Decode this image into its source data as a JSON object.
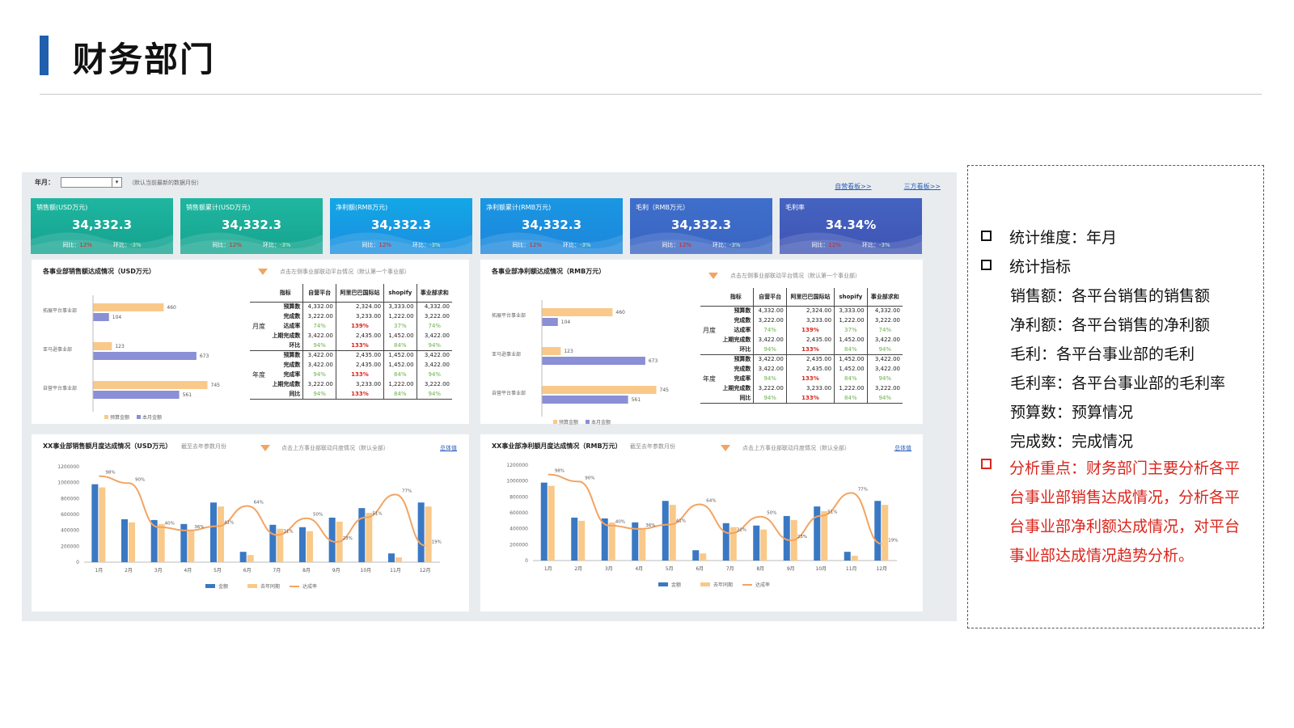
{
  "slide": {
    "title": "财务部门"
  },
  "dashboard": {
    "filter_label": "年月：",
    "filter_note": "（默认当前最新的数据月份）",
    "links": [
      "自营看板>>",
      "三方看板>>"
    ],
    "kpis": [
      {
        "name": "销售额(USD万元)",
        "value": "34,332.3",
        "yoy_label": "同比：",
        "yoy": "12%",
        "mom_label": "环比：",
        "mom": "-3%",
        "color1": "#1fb6a0",
        "color2": "#14a28f"
      },
      {
        "name": "销售额累计(USD万元)",
        "value": "34,332.3",
        "yoy_label": "同比：",
        "yoy": "12%",
        "mom_label": "环比：",
        "mom": "-3%",
        "color1": "#1fb6a0",
        "color2": "#16a48f"
      },
      {
        "name": "净利额(RMB万元)",
        "value": "34,332.3",
        "yoy_label": "同比：",
        "yoy": "12%",
        "mom_label": "环比：",
        "mom": "-3%",
        "color1": "#13a7e6",
        "color2": "#1a8ee0"
      },
      {
        "name": "净利额累计(RMB万元)",
        "value": "34,332.3",
        "yoy_label": "同比：",
        "yoy": "12%",
        "mom_label": "环比：",
        "mom": "-3%",
        "color1": "#1a97e2",
        "color2": "#1c86dc"
      },
      {
        "name": "毛利（RMB万元）",
        "value": "34,332.3",
        "yoy_label": "同比：",
        "yoy": "12%",
        "mom_label": "环比：",
        "mom": "-3%",
        "color1": "#3e6fcb",
        "color2": "#3a64c2"
      },
      {
        "name": "毛利率",
        "value": "34.34%",
        "yoy_label": "同比：",
        "yoy": "12%",
        "mom_label": "环比：",
        "mom": "-3%",
        "color1": "#4563c0",
        "color2": "#3f55b5"
      }
    ],
    "panel_sales": {
      "title": "各事业部销售额达成情况（USD万元）",
      "hint": "点击左侧事业部联动平台情况（默认第一个事业部）"
    },
    "panel_profit": {
      "title": "各事业部净利额达成情况（RMB万元）",
      "hint": "点击左侧事业部联动平台情况（默认第一个事业部）"
    },
    "panel_sales_month": {
      "title": "XX事业部销售额月度达成情况（USD万元）",
      "sub": "截至去年参数月份",
      "hint": "点击上方事业部联动月度情况（默认全部）",
      "link": "总体值"
    },
    "panel_profit_month": {
      "title": "XX事业部净利额月度达成情况（RMB万元）",
      "sub": "截至去年参数月份",
      "hint": "点击上方事业部联动月度情况（默认全部）",
      "link": "总体值"
    },
    "table": {
      "headers": [
        "指标",
        "自营平台",
        "阿里巴巴国际站",
        "shopify",
        "事业部求和"
      ],
      "blocks": [
        {
          "mode": "月度",
          "rows": [
            {
              "metric": "预算数",
              "values": [
                "4,332.00",
                "2,324.00",
                "3,333.00",
                "4,332.00"
              ]
            },
            {
              "metric": "完成数",
              "values": [
                "3,222.00",
                "3,233.00",
                "1,222.00",
                "3,222.00"
              ]
            },
            {
              "metric": "达成率",
              "values": [
                "74%",
                "139%",
                "37%",
                "74%"
              ],
              "pct": true
            },
            {
              "metric": "上期完成数",
              "values": [
                "3,422.00",
                "2,435.00",
                "1,452.00",
                "3,422.00"
              ]
            },
            {
              "metric": "环比",
              "values": [
                "94%",
                "133%",
                "84%",
                "94%"
              ],
              "pct": true
            }
          ]
        },
        {
          "mode": "年度",
          "rows": [
            {
              "metric": "预算数",
              "values": [
                "3,422.00",
                "2,435.00",
                "1,452.00",
                "3,422.00"
              ]
            },
            {
              "metric": "完成数",
              "values": [
                "3,422.00",
                "2,435.00",
                "1,452.00",
                "3,422.00"
              ]
            },
            {
              "metric": "完成率",
              "values": [
                "94%",
                "133%",
                "84%",
                "94%"
              ],
              "pct": true
            },
            {
              "metric": "上期完成数",
              "values": [
                "3,222.00",
                "3,233.00",
                "1,222.00",
                "3,222.00"
              ]
            },
            {
              "metric": "同比",
              "values": [
                "94%",
                "133%",
                "84%",
                "94%"
              ],
              "pct": true
            }
          ]
        }
      ]
    }
  },
  "chart_data": [
    {
      "type": "bar",
      "orientation": "horizontal",
      "title": "各事业部销售额达成情况（USD万元）",
      "categories": [
        "拓展平台事业部",
        "亚马逊事业部",
        "自营平台事业部"
      ],
      "series": [
        {
          "name": "预算金额",
          "values": [
            460,
            123,
            745
          ],
          "color": "#f9c98a"
        },
        {
          "name": "本月金额",
          "values": [
            104,
            673,
            561
          ],
          "color": "#8b8fd6"
        }
      ],
      "legend": [
        "预算金额",
        "本月金额"
      ]
    },
    {
      "type": "bar",
      "orientation": "horizontal",
      "title": "各事业部净利额达成情况（RMB万元）",
      "categories": [
        "拓展平台事业部",
        "亚马逊事业部",
        "自营平台事业部"
      ],
      "series": [
        {
          "name": "预算金额",
          "values": [
            460,
            123,
            745
          ],
          "color": "#f9c98a"
        },
        {
          "name": "本月金额",
          "values": [
            104,
            673,
            561
          ],
          "color": "#8b8fd6"
        }
      ],
      "legend": [
        "预算金额",
        "本月金额"
      ]
    },
    {
      "type": "bar",
      "title": "XX事业部销售额月度达成情况（USD万元）",
      "categories": [
        "1月",
        "2月",
        "3月",
        "4月",
        "5月",
        "6月",
        "7月",
        "8月",
        "9月",
        "10月",
        "11月",
        "12月"
      ],
      "yticks": [
        "0",
        "200000",
        "400000",
        "600000",
        "800000",
        "1000000",
        "1200000"
      ],
      "ylim": [
        0,
        1200000
      ],
      "series": [
        {
          "name": "金额",
          "values": [
            980000,
            540000,
            530000,
            480000,
            750000,
            130000,
            470000,
            440000,
            560000,
            680000,
            110000,
            750000
          ],
          "color": "#3a78c4"
        },
        {
          "name": "去年同期",
          "values": [
            940000,
            500000,
            480000,
            410000,
            700000,
            90000,
            420000,
            390000,
            510000,
            620000,
            60000,
            700000
          ],
          "color": "#f9c98a"
        },
        {
          "name": "达成率",
          "type": "line",
          "values": [
            0.98,
            0.9,
            0.4,
            0.36,
            0.41,
            0.64,
            0.31,
            0.5,
            0.23,
            0.51,
            0.77,
            0.19
          ],
          "labels": [
            "98%",
            "90%",
            "40%",
            "36%",
            "41%",
            "64%",
            "31%",
            "50%",
            "23%",
            "51%",
            "77%",
            "19%"
          ],
          "color": "#f2a463"
        }
      ],
      "legend": [
        "金额",
        "去年同期",
        "达成率"
      ]
    },
    {
      "type": "bar",
      "title": "XX事业部净利额月度达成情况（RMB万元）",
      "categories": [
        "1月",
        "2月",
        "3月",
        "4月",
        "5月",
        "6月",
        "7月",
        "8月",
        "9月",
        "10月",
        "11月",
        "12月"
      ],
      "yticks": [
        "0",
        "200000",
        "400000",
        "600000",
        "800000",
        "1000000",
        "1200000"
      ],
      "ylim": [
        0,
        1200000
      ],
      "series": [
        {
          "name": "金额",
          "values": [
            980000,
            540000,
            530000,
            480000,
            750000,
            130000,
            470000,
            440000,
            560000,
            680000,
            110000,
            750000
          ],
          "color": "#3a78c4"
        },
        {
          "name": "去年同期",
          "values": [
            940000,
            500000,
            480000,
            410000,
            700000,
            90000,
            420000,
            390000,
            510000,
            620000,
            60000,
            700000
          ],
          "color": "#f9c98a"
        },
        {
          "name": "达成率",
          "type": "line",
          "values": [
            0.98,
            0.9,
            0.4,
            0.36,
            0.41,
            0.64,
            0.31,
            0.5,
            0.23,
            0.51,
            0.77,
            0.19
          ],
          "labels": [
            "98%",
            "90%",
            "40%",
            "36%",
            "41%",
            "64%",
            "31%",
            "50%",
            "23%",
            "51%",
            "77%",
            "19%"
          ],
          "color": "#f2a463"
        }
      ],
      "legend": [
        "金额",
        "去年同期",
        "达成率"
      ]
    }
  ],
  "notes": {
    "items": [
      {
        "label": "统计维度：年月"
      },
      {
        "label": "统计指标"
      }
    ],
    "sub_items": [
      "销售额：各平台销售的销售额",
      "净利额：各平台销售的净利额",
      "毛利：各平台事业部的毛利",
      "毛利率：各平台事业部的毛利率",
      "预算数：预算情况",
      "完成数：完成情况"
    ],
    "analysis": "分析重点：财务部门主要分析各平台事业部销售达成情况，分析各平台事业部净利额达成情况，对平台事业部达成情况趋势分析。"
  }
}
